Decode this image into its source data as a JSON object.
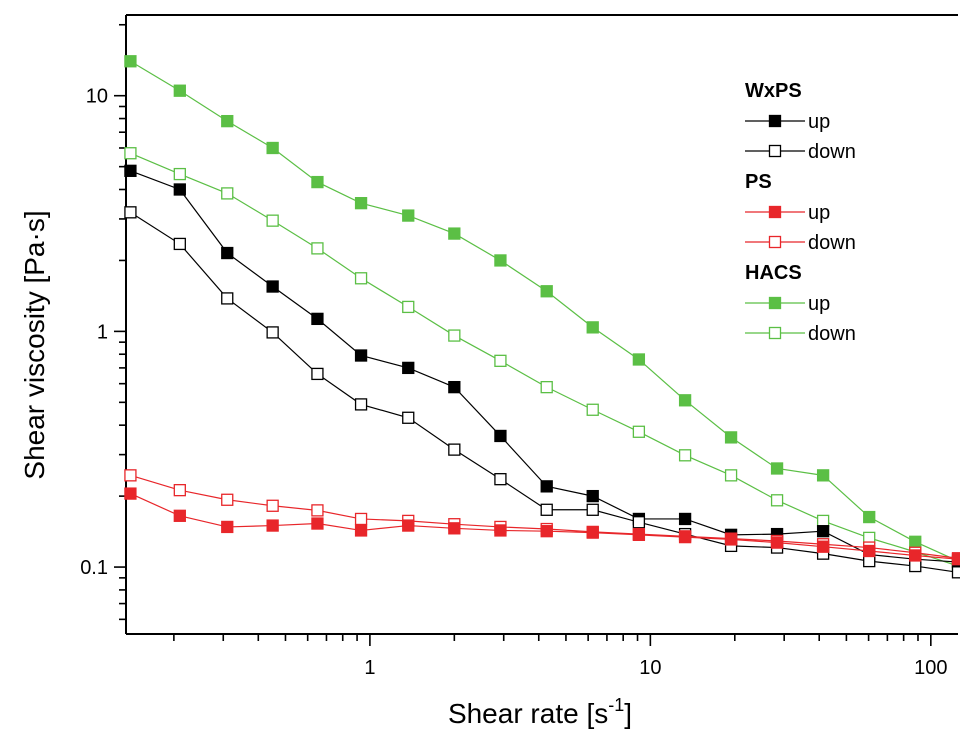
{
  "chart_data": {
    "type": "scatter",
    "title": "",
    "xlabel": "Shear rate [s",
    "xlabel_sup": "-1",
    "xlabel_close": "]",
    "ylabel": "Shear viscosity [Pa·s]",
    "xscale": "log",
    "yscale": "log",
    "xlim": [
      0.135,
      125
    ],
    "ylim": [
      0.052,
      22
    ],
    "xticks": [
      {
        "value": 1,
        "label": "1"
      },
      {
        "value": 10,
        "label": "10"
      },
      {
        "value": 100,
        "label": "100"
      }
    ],
    "yticks": [
      {
        "value": 0.1,
        "label": "0.1"
      },
      {
        "value": 1,
        "label": "1"
      },
      {
        "value": 10,
        "label": "10"
      }
    ],
    "grid": false,
    "legend_position": "top-right",
    "legend": [
      {
        "group": "WxPS",
        "items": [
          {
            "label": "up",
            "series": 0
          },
          {
            "label": "down",
            "series": 1
          }
        ]
      },
      {
        "group": "PS",
        "items": [
          {
            "label": "up",
            "series": 2
          },
          {
            "label": "down",
            "series": 3
          }
        ]
      },
      {
        "group": "HACS",
        "items": [
          {
            "label": "up",
            "series": 4
          },
          {
            "label": "down",
            "series": 5
          }
        ]
      }
    ],
    "series": [
      {
        "group": "WxPS",
        "name": "up",
        "color": "#000000",
        "filled": true,
        "x": [
          0.14,
          0.21,
          0.31,
          0.45,
          0.65,
          0.93,
          1.37,
          2.0,
          2.92,
          4.27,
          6.23,
          9.1,
          13.3,
          19.4,
          28.3,
          41.3,
          60.3,
          88.0,
          125
        ],
        "y": [
          4.8,
          4.0,
          2.15,
          1.55,
          1.13,
          0.79,
          0.7,
          0.58,
          0.36,
          0.22,
          0.2,
          0.16,
          0.16,
          0.137,
          0.138,
          0.142,
          0.113,
          0.108,
          0.105
        ]
      },
      {
        "group": "WxPS",
        "name": "down",
        "color": "#000000",
        "filled": false,
        "x": [
          0.14,
          0.21,
          0.31,
          0.45,
          0.65,
          0.93,
          1.37,
          2.0,
          2.92,
          4.27,
          6.23,
          9.1,
          13.3,
          19.4,
          28.3,
          41.3,
          60.3,
          88.0,
          125
        ],
        "y": [
          3.2,
          2.35,
          1.38,
          0.99,
          0.66,
          0.49,
          0.43,
          0.315,
          0.236,
          0.175,
          0.175,
          0.155,
          0.138,
          0.123,
          0.121,
          0.114,
          0.106,
          0.101,
          0.095
        ]
      },
      {
        "group": "PS",
        "name": "up",
        "color": "#e8262a",
        "filled": true,
        "x": [
          0.14,
          0.21,
          0.31,
          0.45,
          0.65,
          0.93,
          1.37,
          2.0,
          2.92,
          4.27,
          6.23,
          9.1,
          13.3,
          19.4,
          28.3,
          41.3,
          60.3,
          88.0,
          125
        ],
        "y": [
          0.205,
          0.165,
          0.148,
          0.15,
          0.153,
          0.143,
          0.15,
          0.146,
          0.143,
          0.142,
          0.14,
          0.137,
          0.134,
          0.131,
          0.127,
          0.122,
          0.117,
          0.112,
          0.108
        ]
      },
      {
        "group": "PS",
        "name": "down",
        "color": "#e8262a",
        "filled": false,
        "x": [
          0.14,
          0.21,
          0.31,
          0.45,
          0.65,
          0.93,
          1.37,
          2.0,
          2.92,
          4.27,
          6.23,
          9.1,
          13.3,
          19.4,
          28.3,
          41.3,
          60.3,
          88.0,
          125
        ],
        "y": [
          0.245,
          0.212,
          0.193,
          0.182,
          0.174,
          0.16,
          0.157,
          0.152,
          0.148,
          0.145,
          0.141,
          0.138,
          0.135,
          0.132,
          0.129,
          0.125,
          0.121,
          0.115,
          0.109
        ]
      },
      {
        "group": "HACS",
        "name": "up",
        "color": "#5bbf45",
        "filled": true,
        "x": [
          0.14,
          0.21,
          0.31,
          0.45,
          0.65,
          0.93,
          1.37,
          2.0,
          2.92,
          4.27,
          6.23,
          9.1,
          13.3,
          19.4,
          28.3,
          41.3,
          60.3,
          88.0,
          125
        ],
        "y": [
          14.0,
          10.5,
          7.8,
          6.0,
          4.3,
          3.5,
          3.1,
          2.6,
          2.0,
          1.48,
          1.04,
          0.76,
          0.51,
          0.355,
          0.262,
          0.245,
          0.163,
          0.128,
          0.106
        ]
      },
      {
        "group": "HACS",
        "name": "down",
        "color": "#5bbf45",
        "filled": false,
        "x": [
          0.14,
          0.21,
          0.31,
          0.45,
          0.65,
          0.93,
          1.37,
          2.0,
          2.92,
          4.27,
          6.23,
          9.1,
          13.3,
          19.4,
          28.3,
          41.3,
          60.3,
          88.0,
          125
        ],
        "y": [
          5.7,
          4.65,
          3.85,
          2.95,
          2.25,
          1.68,
          1.27,
          0.96,
          0.75,
          0.58,
          0.465,
          0.375,
          0.298,
          0.245,
          0.192,
          0.157,
          0.133,
          0.116,
          0.101
        ]
      }
    ]
  }
}
